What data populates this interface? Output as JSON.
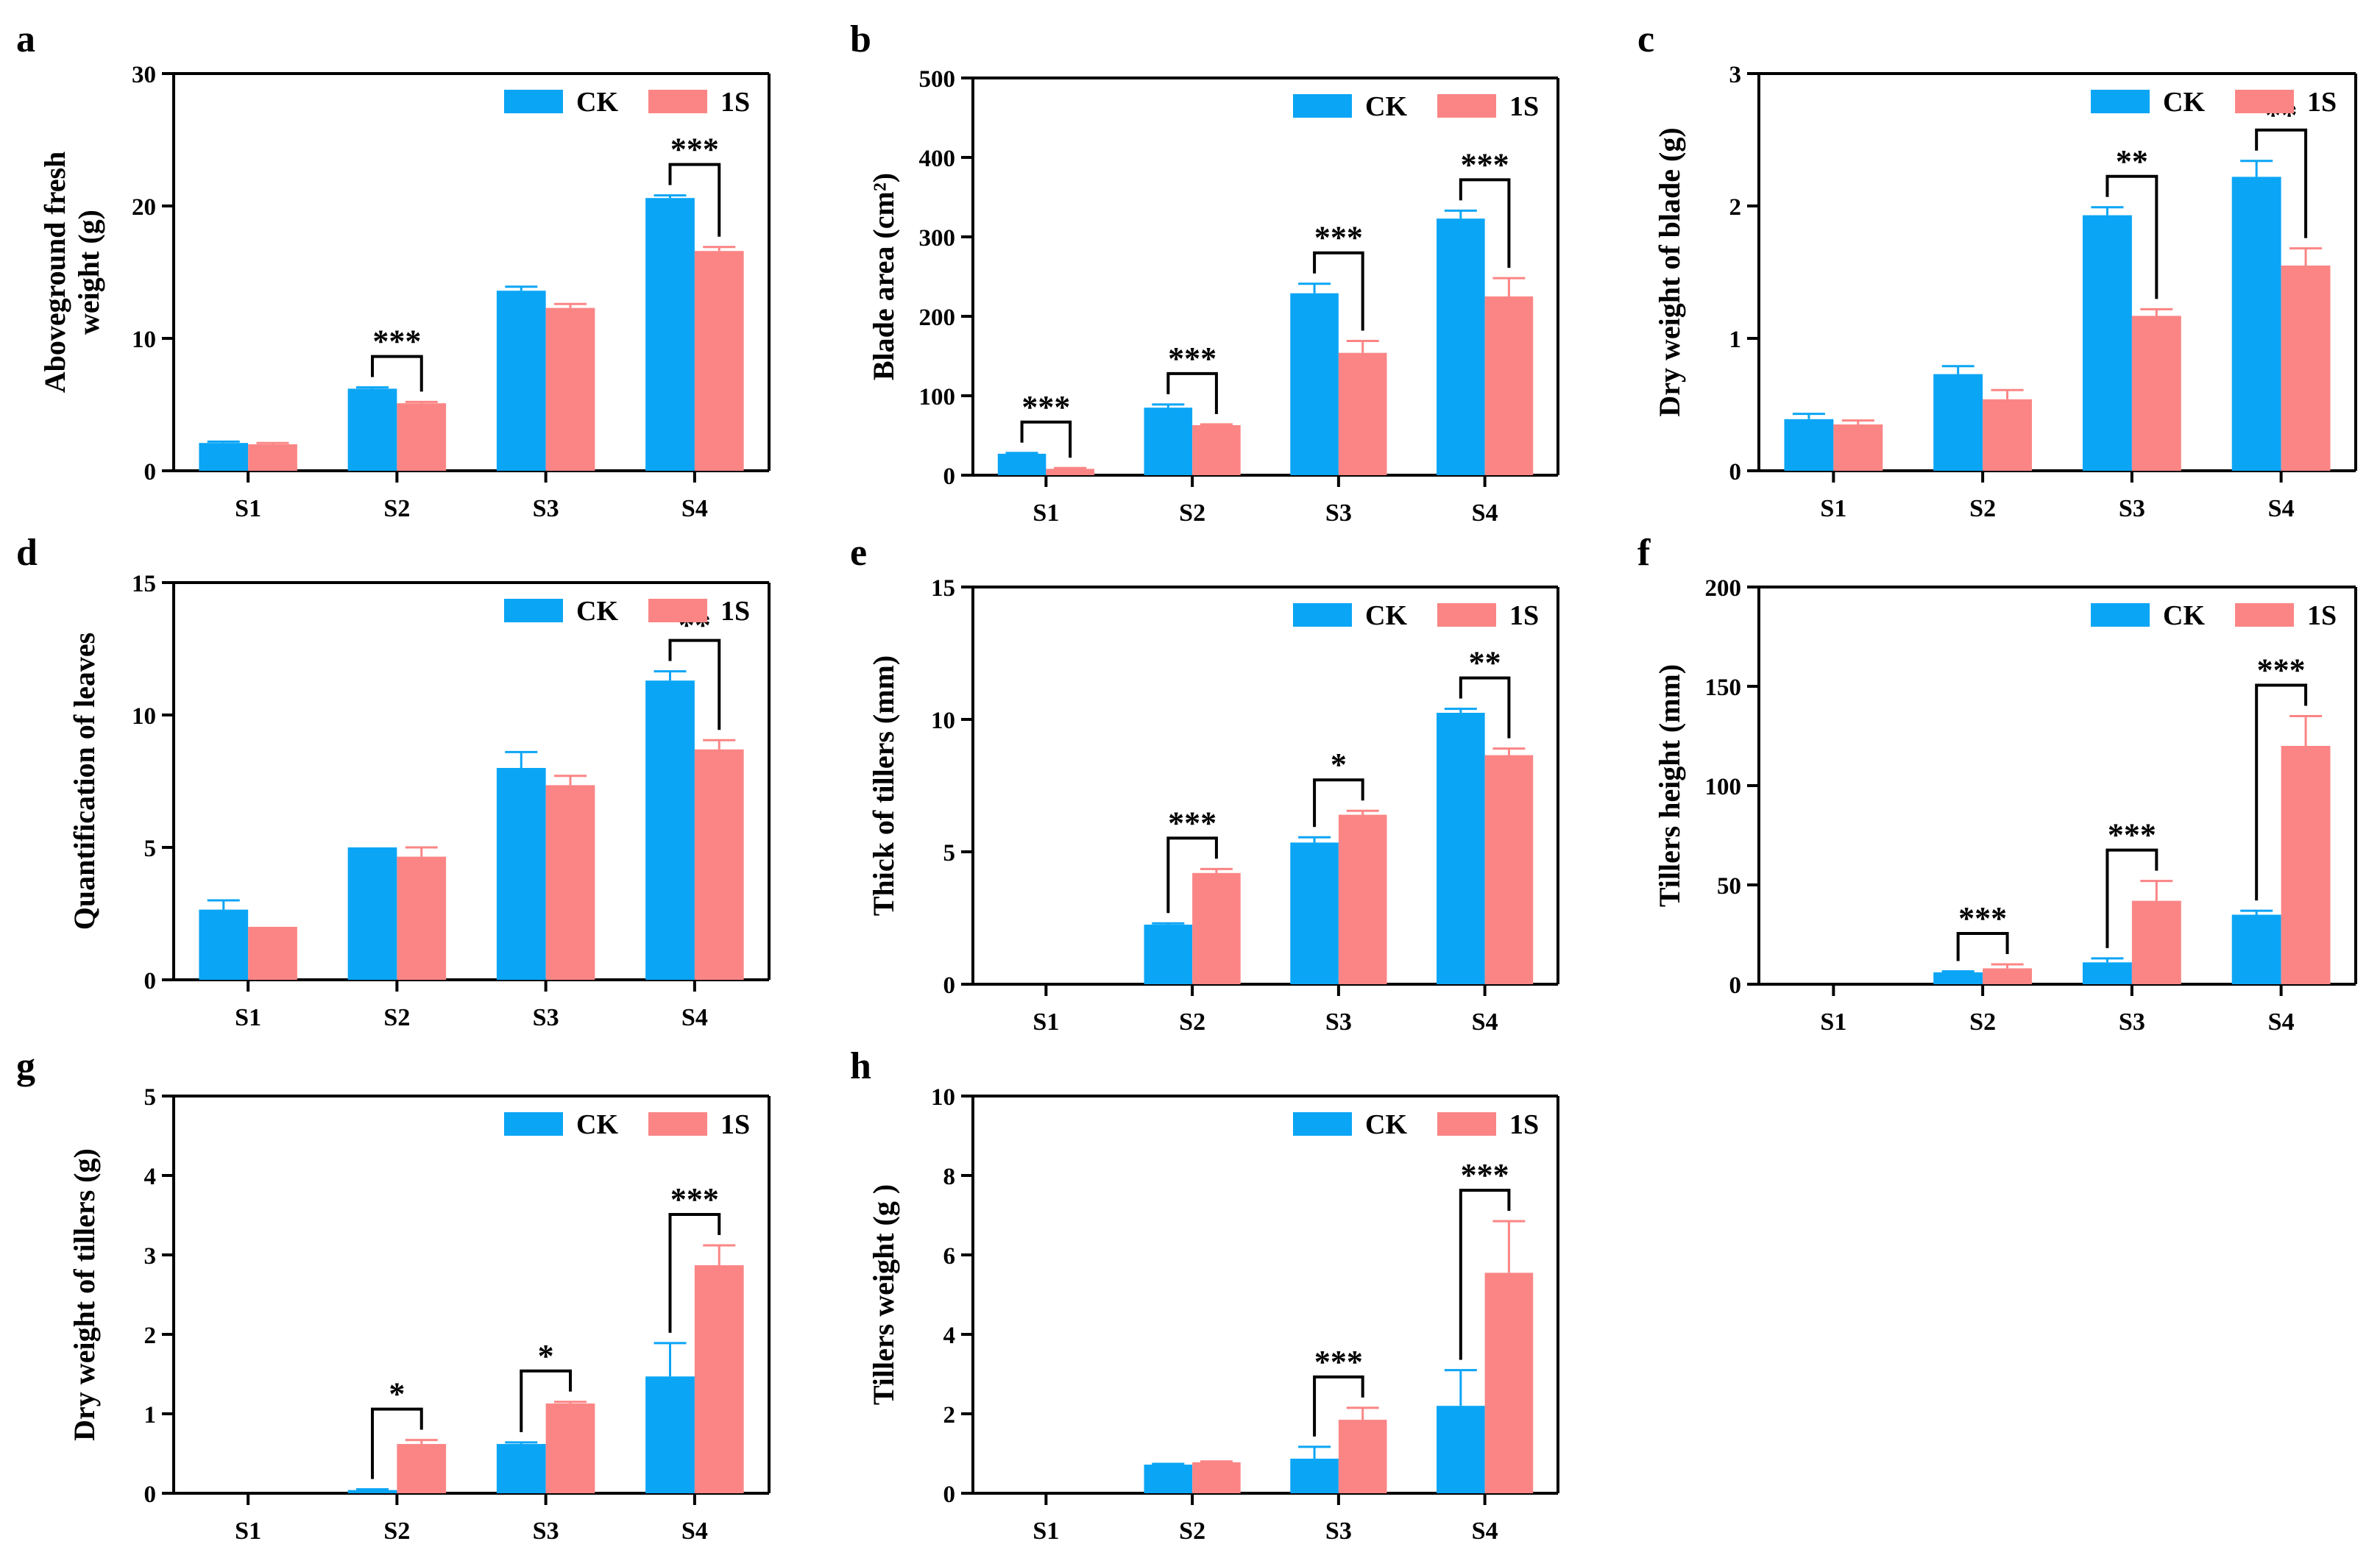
{
  "colors": {
    "CK": "#0BA5F5",
    "1S": "#FB8585",
    "CK_err": "#0BA5F5",
    "1S_err": "#FB8585",
    "axis": "#000000"
  },
  "legend": [
    "CK",
    "1S"
  ],
  "chart_data": [
    {
      "panel": "a",
      "type": "bar",
      "ylabel_lines": [
        "Aboveground fresh",
        "weight (g)"
      ],
      "ylim": [
        0,
        30
      ],
      "yticks": [
        "0",
        "10",
        "20",
        "30"
      ],
      "categories": [
        "S1",
        "S2",
        "S3",
        "S4"
      ],
      "series": [
        {
          "name": "CK",
          "values": [
            2.1,
            6.2,
            13.6,
            20.6
          ],
          "errors": [
            0.1,
            0.1,
            0.3,
            0.2
          ]
        },
        {
          "name": "1S",
          "values": [
            2.0,
            5.1,
            12.3,
            16.6
          ],
          "errors": [
            0.1,
            0.1,
            0.3,
            0.3
          ]
        }
      ],
      "significance": [
        {
          "category": "S2",
          "label": "***"
        },
        {
          "category": "S4",
          "label": "***"
        }
      ]
    },
    {
      "panel": "b",
      "type": "bar",
      "ylabel_lines": [
        "Blade area (cm²)"
      ],
      "ylim": [
        0,
        500
      ],
      "yticks": [
        "0",
        "100",
        "200",
        "300",
        "400",
        "500"
      ],
      "categories": [
        "S1",
        "S2",
        "S3",
        "S4"
      ],
      "series": [
        {
          "name": "CK",
          "values": [
            27,
            85,
            229,
            323
          ],
          "errors": [
            1,
            4,
            12,
            10
          ]
        },
        {
          "name": "1S",
          "values": [
            8,
            63,
            154,
            225
          ],
          "errors": [
            1,
            1,
            15,
            23
          ]
        }
      ],
      "significance": [
        {
          "category": "S1",
          "label": "***"
        },
        {
          "category": "S2",
          "label": "***"
        },
        {
          "category": "S3",
          "label": "***"
        },
        {
          "category": "S4",
          "label": "***"
        }
      ]
    },
    {
      "panel": "c",
      "type": "bar",
      "ylabel_lines": [
        "Dry weight of blade (g)"
      ],
      "ylim": [
        0,
        3
      ],
      "yticks": [
        "0",
        "1",
        "2",
        "3"
      ],
      "categories": [
        "S1",
        "S2",
        "S3",
        "S4"
      ],
      "series": [
        {
          "name": "CK",
          "values": [
            0.39,
            0.73,
            1.93,
            2.22
          ],
          "errors": [
            0.04,
            0.06,
            0.06,
            0.12
          ]
        },
        {
          "name": "1S",
          "values": [
            0.35,
            0.54,
            1.17,
            1.55
          ],
          "errors": [
            0.03,
            0.07,
            0.05,
            0.13
          ]
        }
      ],
      "significance": [
        {
          "category": "S3",
          "label": "**"
        },
        {
          "category": "S4",
          "label": "**"
        }
      ]
    },
    {
      "panel": "d",
      "type": "bar",
      "ylabel_lines": [
        "Quantification of leaves"
      ],
      "ylim": [
        0,
        15
      ],
      "yticks": [
        "0",
        "5",
        "10",
        "15"
      ],
      "categories": [
        "S1",
        "S2",
        "S3",
        "S4"
      ],
      "series": [
        {
          "name": "CK",
          "values": [
            2.65,
            5.0,
            8.0,
            11.3
          ],
          "errors": [
            0.35,
            0.0,
            0.6,
            0.35
          ]
        },
        {
          "name": "1S",
          "values": [
            2.0,
            4.65,
            7.35,
            8.7
          ],
          "errors": [
            0.0,
            0.35,
            0.35,
            0.35
          ]
        }
      ],
      "significance": [
        {
          "category": "S4",
          "label": "**"
        }
      ]
    },
    {
      "panel": "e",
      "type": "bar",
      "ylabel_lines": [
        "Thick of tillers (mm)"
      ],
      "ylim": [
        0,
        15
      ],
      "yticks": [
        "0",
        "5",
        "10",
        "15"
      ],
      "categories": [
        "S1",
        "S2",
        "S3",
        "S4"
      ],
      "series": [
        {
          "name": "CK",
          "values": [
            0,
            2.25,
            5.35,
            10.25
          ],
          "errors": [
            0,
            0.05,
            0.2,
            0.15
          ]
        },
        {
          "name": "1S",
          "values": [
            0,
            4.2,
            6.4,
            8.65
          ],
          "errors": [
            0,
            0.15,
            0.15,
            0.25
          ]
        }
      ],
      "significance": [
        {
          "category": "S2",
          "label": "***"
        },
        {
          "category": "S3",
          "label": "*"
        },
        {
          "category": "S4",
          "label": "**"
        }
      ]
    },
    {
      "panel": "f",
      "type": "bar",
      "ylabel_lines": [
        "Tillers height (mm)"
      ],
      "ylim": [
        0,
        200
      ],
      "yticks": [
        "0",
        "50",
        "100",
        "150",
        "200"
      ],
      "categories": [
        "S1",
        "S2",
        "S3",
        "S4"
      ],
      "series": [
        {
          "name": "CK",
          "values": [
            0,
            6,
            11,
            35
          ],
          "errors": [
            0,
            0.5,
            2,
            2
          ]
        },
        {
          "name": "1S",
          "values": [
            0,
            8,
            42,
            120
          ],
          "errors": [
            0,
            2,
            10,
            15
          ]
        }
      ],
      "significance": [
        {
          "category": "S2",
          "label": "***"
        },
        {
          "category": "S3",
          "label": "***"
        },
        {
          "category": "S4",
          "label": "***"
        }
      ]
    },
    {
      "panel": "g",
      "type": "bar",
      "ylabel_lines": [
        "Dry weight of tillers (g)"
      ],
      "ylim": [
        0,
        5
      ],
      "yticks": [
        "0",
        "1",
        "2",
        "3",
        "4",
        "5"
      ],
      "categories": [
        "S1",
        "S2",
        "S3",
        "S4"
      ],
      "series": [
        {
          "name": "CK",
          "values": [
            0,
            0.04,
            0.62,
            1.47
          ],
          "errors": [
            0,
            0.01,
            0.02,
            0.42
          ]
        },
        {
          "name": "1S",
          "values": [
            0,
            0.62,
            1.13,
            2.87
          ],
          "errors": [
            0,
            0.05,
            0.02,
            0.25
          ]
        }
      ],
      "significance": [
        {
          "category": "S2",
          "label": "*"
        },
        {
          "category": "S3",
          "label": "*"
        },
        {
          "category": "S4",
          "label": "***"
        }
      ]
    },
    {
      "panel": "h",
      "type": "bar",
      "ylabel_lines": [
        "Tillers weight (g )"
      ],
      "ylim": [
        0,
        10
      ],
      "yticks": [
        "0",
        "2",
        "4",
        "6",
        "8",
        "10"
      ],
      "categories": [
        "S1",
        "S2",
        "S3",
        "S4"
      ],
      "series": [
        {
          "name": "CK",
          "values": [
            0,
            0.72,
            0.87,
            2.2
          ],
          "errors": [
            0,
            0.02,
            0.3,
            0.9
          ]
        },
        {
          "name": "1S",
          "values": [
            0,
            0.78,
            1.85,
            5.55
          ],
          "errors": [
            0,
            0.02,
            0.3,
            1.3
          ]
        }
      ],
      "significance": [
        {
          "category": "S3",
          "label": "***"
        },
        {
          "category": "S4",
          "label": "***"
        }
      ]
    }
  ]
}
